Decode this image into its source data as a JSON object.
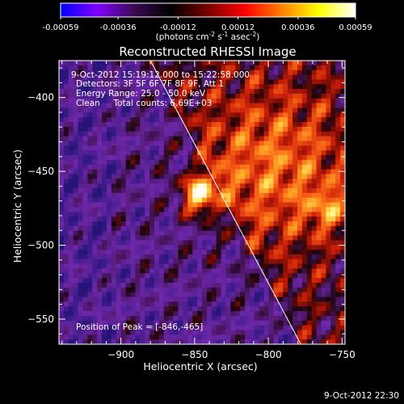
{
  "colorbar": {
    "tick_labels": [
      "-0.00059",
      "-0.00036",
      "-0.00012",
      "0.00012",
      "0.00036",
      "0.00059"
    ],
    "tick_values": [
      -0.00059,
      -0.00036,
      -0.00012,
      0.00012,
      0.00036,
      0.00059
    ],
    "range": [
      -0.00059,
      0.00059
    ],
    "units_main": "(photons cm",
    "units_sup1": "-2",
    "units_mid": " s",
    "units_sup2": "-1",
    "units_end": " asec",
    "units_sup3": "-2",
    "units_close": ")",
    "colors": [
      "#0000ff",
      "#8000ff",
      "#3a0a50",
      "#000000",
      "#7a0000",
      "#ff0000",
      "#ff8000",
      "#ffff00",
      "#ffffff"
    ]
  },
  "chart_data": {
    "type": "heatmap",
    "title": "Reconstructed RHESSI Image",
    "xlabel": "Heliocentric X (arcsec)",
    "ylabel": "Heliocentric Y (arcsec)",
    "xlim": [
      -942,
      -748
    ],
    "ylim": [
      -567,
      -375
    ],
    "x_ticks": [
      -900,
      -850,
      -800,
      -750
    ],
    "x_tick_labels": [
      "−900",
      "−850",
      "−800",
      "−750"
    ],
    "y_ticks": [
      -400,
      -450,
      -500,
      -550
    ],
    "y_tick_labels": [
      "−400",
      "−450",
      "−500",
      "−550"
    ],
    "limb_line": [
      [
        -880,
        -375
      ],
      [
        -778,
        -567
      ]
    ],
    "peak": {
      "x": -846,
      "y": -465
    },
    "info_lines": [
      "9-Oct-2012 15:19:12.000 to 15:22:58.000",
      "Detectors: 3F 5F 6F 7F 8F 9F, Att 1",
      "Energy Range: 25.0 - 50.0 keV",
      "Clean     Total counts: 6.69E+03"
    ],
    "peak_label": "Position of Peak = [-846,-465]",
    "grid": false
  },
  "footer": {
    "timestamp": "9-Oct-2012 22:30"
  }
}
